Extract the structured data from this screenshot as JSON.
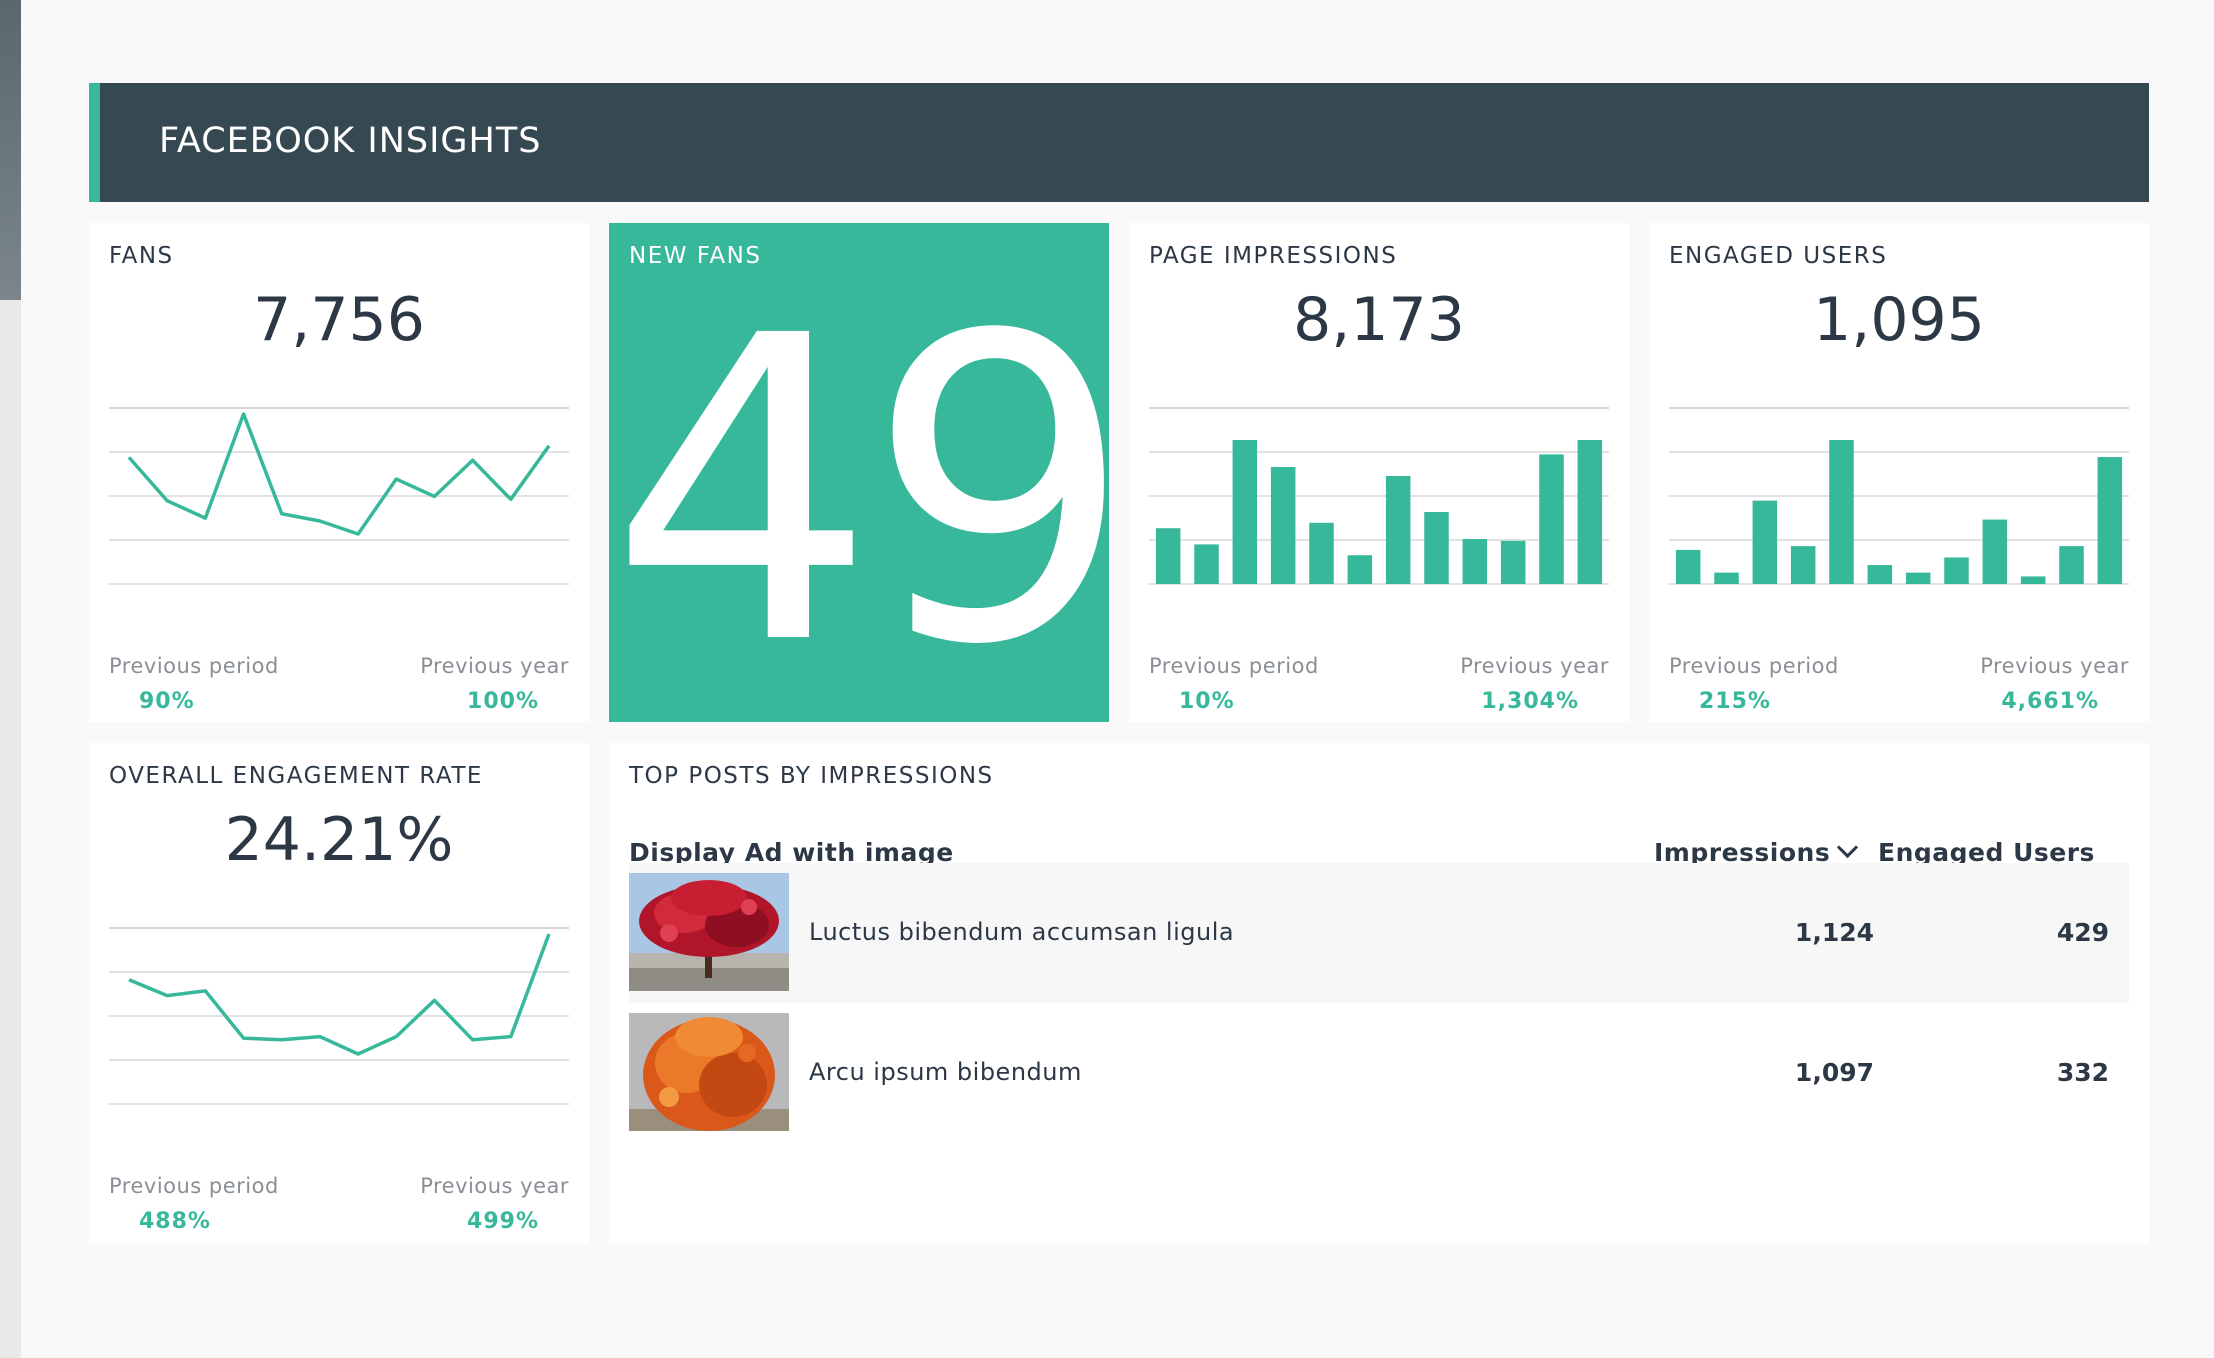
{
  "header": {
    "title": "FACEBOOK INSIGHTS"
  },
  "cards": {
    "fans": {
      "title": "FANS",
      "value": "7,756",
      "prev_period_label": "Previous period",
      "prev_period_value": "90%",
      "prev_year_label": "Previous year",
      "prev_year_value": "100%"
    },
    "new_fans": {
      "title": "NEW FANS",
      "value": "49"
    },
    "page_impressions": {
      "title": "PAGE IMPRESSIONS",
      "value": "8,173",
      "prev_period_label": "Previous period",
      "prev_period_value": "10%",
      "prev_year_label": "Previous year",
      "prev_year_value": "1,304%"
    },
    "engaged_users": {
      "title": "ENGAGED USERS",
      "value": "1,095",
      "prev_period_label": "Previous period",
      "prev_period_value": "215%",
      "prev_year_label": "Previous year",
      "prev_year_value": "4,661%"
    },
    "engagement_rate": {
      "title": "OVERALL ENGAGEMENT RATE",
      "value": "24.21%",
      "prev_period_label": "Previous period",
      "prev_period_value": "488%",
      "prev_year_label": "Previous year",
      "prev_year_value": "499%"
    }
  },
  "top_posts": {
    "title": "TOP POSTS BY IMPRESSIONS",
    "col_post": "Display Ad with image",
    "col_impressions": "Impressions",
    "col_engaged": "Engaged Users",
    "rows": [
      {
        "text": "Luctus bibendum accumsan ligula",
        "impressions": "1,124",
        "engaged": "429"
      },
      {
        "text": "Arcu ipsum bibendum",
        "impressions": "1,097",
        "engaged": "332"
      }
    ]
  },
  "colors": {
    "accent": "#38b89a",
    "header_bg": "#364952",
    "text": "#2c3846"
  },
  "chart_data": [
    {
      "type": "line",
      "name": "fans",
      "values": [
        70,
        40,
        28,
        100,
        31,
        26,
        17,
        55,
        43,
        68,
        41,
        78
      ]
    },
    {
      "type": "bar",
      "name": "page_impressions",
      "values": [
        31,
        22,
        80,
        65,
        34,
        16,
        60,
        40,
        25,
        24,
        72,
        80
      ]
    },
    {
      "type": "bar",
      "name": "engaged_users",
      "values": [
        18,
        6,
        44,
        20,
        76,
        10,
        6,
        14,
        34,
        4,
        20,
        67
      ]
    },
    {
      "type": "line",
      "name": "engagement_rate",
      "values": [
        47,
        37,
        40,
        10,
        9,
        11,
        0,
        11,
        34,
        9,
        11,
        76
      ]
    }
  ]
}
